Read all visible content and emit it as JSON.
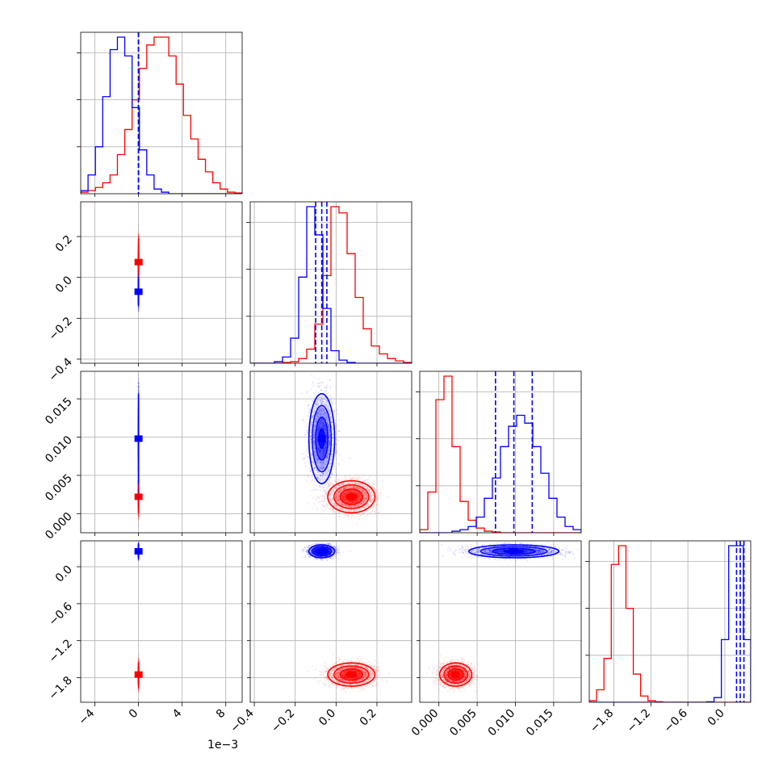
{
  "chart_data": {
    "type": "corner",
    "parameters": [
      {
        "range": [
          -5.3,
          9.5
        ],
        "ticks": [
          -4,
          0,
          4,
          8
        ],
        "tick_labels": [
          "−4",
          "0",
          "4",
          "8"
        ],
        "offset_label": "1e−3"
      },
      {
        "range": [
          -0.42,
          0.37
        ],
        "ticks": [
          -0.4,
          -0.2,
          0.0,
          0.2
        ],
        "tick_labels": [
          "−0.4",
          "−0.2",
          "0.0",
          "0.2"
        ]
      },
      {
        "range": [
          -0.0025,
          0.0186
        ],
        "ticks": [
          0.0,
          0.005,
          0.01,
          0.015
        ],
        "tick_labels": [
          "0.000",
          "0.005",
          "0.010",
          "0.015"
        ]
      },
      {
        "range": [
          -2.2,
          0.42
        ],
        "ticks": [
          -1.8,
          -1.2,
          -0.6,
          0.0
        ],
        "tick_labels": [
          "−1.8",
          "−1.2",
          "−0.6",
          "0.0"
        ]
      }
    ],
    "series": [
      {
        "color": "#ff0000",
        "means": [
          0.0028,
          0.075,
          0.0022,
          -1.75
        ],
        "sds": [
          0.0017,
          0.055,
          0.001,
          0.09
        ],
        "corr_01": 0.45
      },
      {
        "color": "#0000ff",
        "means": [
          -0.0006,
          -0.07,
          0.0098,
          0.25
        ],
        "sds": [
          0.0008,
          0.03,
          0.0028,
          0.05
        ],
        "corr_01": 0.25,
        "quantile_lines": [
          [
            -0.0017,
            -0.0006,
            0.0004
          ],
          [
            -0.1,
            -0.07,
            -0.045
          ],
          [
            0.0074,
            0.0098,
            0.0122
          ],
          [
            0.19,
            0.25,
            0.31
          ]
        ]
      }
    ],
    "histograms": [
      {
        "series": [
          {
            "color": "#ff0000",
            "values": [
              1,
              2,
              4,
              7,
              12,
              25,
              41,
              60,
              80,
              95,
              100,
              100,
              88,
              70,
              50,
              35,
              22,
              14,
              7,
              3,
              1,
              0.5
            ]
          },
          {
            "color": "#0000ff",
            "values": [
              2,
              12,
              30,
              62,
              92,
              100,
              88,
              55,
              28,
              12,
              3,
              1,
              0,
              0,
              0,
              0,
              0,
              0,
              0,
              0,
              0,
              0
            ]
          }
        ]
      },
      {
        "series": [
          {
            "color": "#ff0000",
            "values": [
              0,
              0,
              0,
              0,
              0.5,
              1,
              3,
              9,
              25,
              56,
              100,
              96,
              70,
              42,
              22,
              11,
              6,
              3,
              1.5,
              0.5
            ]
          },
          {
            "color": "#0000ff",
            "values": [
              0,
              0,
              0,
              1,
              4,
              16,
              55,
              100,
              82,
              35,
              8,
              2,
              0.5,
              0,
              0,
              0,
              0,
              0,
              0,
              0
            ]
          }
        ]
      },
      {
        "series": [
          {
            "color": "#ff0000",
            "values": [
              2,
              26,
              85,
              100,
              55,
              20,
              8,
              3,
              1,
              0.5,
              0,
              0,
              0,
              0,
              0,
              0,
              0,
              0,
              0,
              0
            ]
          },
          {
            "color": "#0000ff",
            "values": [
              0,
              0,
              0,
              0,
              1,
              2,
              4,
              10,
              22,
              35,
              55,
              68,
              75,
              70,
              55,
              38,
              22,
              10,
              4,
              2
            ]
          }
        ]
      },
      {
        "series": [
          {
            "color": "#ff0000",
            "values": [
              1,
              8,
              28,
              88,
              100,
              60,
              18,
              4,
              1,
              0.3,
              0,
              0,
              0,
              0,
              0,
              0,
              0,
              0,
              0,
              0,
              0,
              0
            ]
          },
          {
            "color": "#0000ff",
            "values": [
              0,
              0,
              0,
              0,
              0,
              0,
              0,
              0,
              0,
              0,
              0,
              0,
              0,
              0,
              0,
              0,
              0.3,
              3,
              40,
              100,
              100,
              40
            ]
          }
        ]
      }
    ],
    "grid": true,
    "xlabel": "",
    "ylabel": "",
    "title": ""
  }
}
